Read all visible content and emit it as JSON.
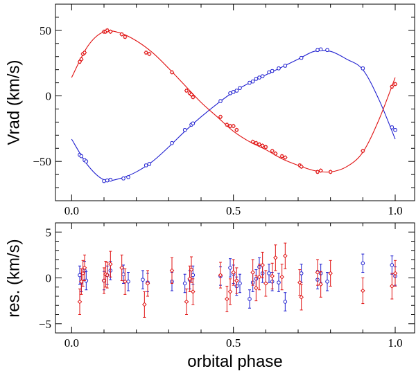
{
  "chart_data": [
    {
      "type": "line",
      "panel": "top",
      "title": "",
      "xlabel": "",
      "ylabel": "Vrad (km/s)",
      "xlim": [
        -0.05,
        1.06
      ],
      "ylim": [
        -80,
        70
      ],
      "xticks": [
        0.0,
        0.5,
        1.0
      ],
      "xtick_labels": [
        "0.0",
        "0.5",
        "1.0"
      ],
      "yticks": [
        -50,
        0,
        50
      ],
      "ytick_labels": [
        "−50",
        "0",
        "50"
      ],
      "series": [
        {
          "name": "primary (blue circles)",
          "color": "#1f1fd0",
          "marker": "circle",
          "points": [
            [
              0.025,
              -45
            ],
            [
              0.03,
              -46
            ],
            [
              0.04,
              -49
            ],
            [
              0.045,
              -50
            ],
            [
              0.1,
              -65
            ],
            [
              0.11,
              -64.5
            ],
            [
              0.12,
              -64
            ],
            [
              0.16,
              -63
            ],
            [
              0.175,
              -62
            ],
            [
              0.23,
              -53
            ],
            [
              0.24,
              -52
            ],
            [
              0.31,
              -36
            ],
            [
              0.35,
              -26
            ],
            [
              0.37,
              -22
            ],
            [
              0.375,
              -21
            ],
            [
              0.46,
              -4
            ],
            [
              0.49,
              2
            ],
            [
              0.5,
              3
            ],
            [
              0.51,
              4
            ],
            [
              0.52,
              6
            ],
            [
              0.55,
              10
            ],
            [
              0.56,
              11
            ],
            [
              0.57,
              13
            ],
            [
              0.58,
              14
            ],
            [
              0.59,
              15
            ],
            [
              0.61,
              18
            ],
            [
              0.62,
              19
            ],
            [
              0.64,
              21
            ],
            [
              0.66,
              23
            ],
            [
              0.71,
              29
            ],
            [
              0.76,
              35
            ],
            [
              0.77,
              35.5
            ],
            [
              0.79,
              35
            ],
            [
              0.9,
              21
            ],
            [
              0.99,
              -24
            ],
            [
              1.0,
              -26
            ]
          ],
          "curve_x": [
            0.0,
            0.05,
            0.1,
            0.15,
            0.2,
            0.25,
            0.3,
            0.35,
            0.4,
            0.45,
            0.5,
            0.55,
            0.6,
            0.65,
            0.7,
            0.75,
            0.8,
            0.85,
            0.9,
            0.95,
            1.0
          ],
          "curve_y": [
            -33,
            -53,
            -64,
            -63,
            -58,
            -50,
            -39,
            -27,
            -16,
            -6,
            3,
            10,
            16,
            22,
            28,
            34,
            34,
            28,
            20,
            -3,
            -33
          ]
        },
        {
          "name": "secondary (red diamonds)",
          "color": "#e01010",
          "marker": "diamond",
          "points": [
            [
              0.025,
              26
            ],
            [
              0.03,
              28
            ],
            [
              0.035,
              32
            ],
            [
              0.04,
              33
            ],
            [
              0.1,
              49
            ],
            [
              0.105,
              49
            ],
            [
              0.11,
              50
            ],
            [
              0.12,
              49
            ],
            [
              0.155,
              47
            ],
            [
              0.165,
              45
            ],
            [
              0.23,
              33
            ],
            [
              0.24,
              32
            ],
            [
              0.31,
              18
            ],
            [
              0.355,
              4
            ],
            [
              0.365,
              2
            ],
            [
              0.37,
              1
            ],
            [
              0.375,
              -1
            ],
            [
              0.46,
              -16
            ],
            [
              0.48,
              -22
            ],
            [
              0.49,
              -23
            ],
            [
              0.5,
              -23
            ],
            [
              0.51,
              -26
            ],
            [
              0.56,
              -35
            ],
            [
              0.57,
              -36
            ],
            [
              0.58,
              -37
            ],
            [
              0.59,
              -38
            ],
            [
              0.6,
              -39
            ],
            [
              0.62,
              -42
            ],
            [
              0.63,
              -44
            ],
            [
              0.65,
              -46
            ],
            [
              0.66,
              -47
            ],
            [
              0.705,
              -53
            ],
            [
              0.71,
              -54
            ],
            [
              0.76,
              -58
            ],
            [
              0.77,
              -57
            ],
            [
              0.8,
              -58
            ],
            [
              0.9,
              -42
            ],
            [
              0.99,
              7
            ],
            [
              1.0,
              9
            ]
          ],
          "curve_x": [
            0.0,
            0.05,
            0.1,
            0.15,
            0.2,
            0.25,
            0.3,
            0.35,
            0.4,
            0.45,
            0.5,
            0.55,
            0.6,
            0.65,
            0.7,
            0.75,
            0.8,
            0.85,
            0.9,
            0.95,
            1.0
          ],
          "curve_y": [
            14,
            38,
            49,
            48,
            42,
            33,
            21,
            8,
            -5,
            -16,
            -27,
            -35,
            -41,
            -48,
            -53,
            -57,
            -58,
            -54,
            -43,
            -18,
            14
          ]
        }
      ]
    },
    {
      "type": "scatter",
      "panel": "bottom",
      "title": "",
      "xlabel": "orbital phase",
      "ylabel": "res. (km/s)",
      "xlim": [
        -0.05,
        1.06
      ],
      "ylim": [
        -6,
        6
      ],
      "xticks": [
        0.0,
        0.5,
        1.0
      ],
      "xtick_labels": [
        "0.0",
        "0.5",
        "1.0"
      ],
      "yticks": [
        -5,
        0,
        5
      ],
      "ytick_labels": [
        "−5",
        "0",
        "5"
      ],
      "series": [
        {
          "name": "primary residuals (blue circles)",
          "color": "#1f1fd0",
          "marker": "circle",
          "error": 1.0,
          "points": [
            [
              0.025,
              0.3
            ],
            [
              0.03,
              -0.5
            ],
            [
              0.04,
              0.8
            ],
            [
              0.045,
              -0.3
            ],
            [
              0.1,
              -0.3
            ],
            [
              0.11,
              0.3
            ],
            [
              0.12,
              0.8
            ],
            [
              0.16,
              0.4
            ],
            [
              0.175,
              -0.4
            ],
            [
              0.22,
              -0.2
            ],
            [
              0.235,
              -0.5
            ],
            [
              0.31,
              -0.4
            ],
            [
              0.35,
              -0.6
            ],
            [
              0.365,
              -0.2
            ],
            [
              0.375,
              0.3
            ],
            [
              0.46,
              0.2
            ],
            [
              0.49,
              1.1
            ],
            [
              0.5,
              0.4
            ],
            [
              0.51,
              -0.9
            ],
            [
              0.52,
              -0.6
            ],
            [
              0.55,
              -2.3
            ],
            [
              0.56,
              -0.5
            ],
            [
              0.57,
              -0.1
            ],
            [
              0.58,
              1.2
            ],
            [
              0.59,
              0.5
            ],
            [
              0.61,
              0.5
            ],
            [
              0.62,
              -0.4
            ],
            [
              0.64,
              -0.5
            ],
            [
              0.66,
              -2.6
            ],
            [
              0.71,
              0.5
            ],
            [
              0.76,
              -0.2
            ],
            [
              0.77,
              0.5
            ],
            [
              0.79,
              -0.4
            ],
            [
              0.9,
              1.6
            ],
            [
              0.99,
              1.4
            ],
            [
              1.0,
              0.2
            ]
          ]
        },
        {
          "name": "secondary residuals (red diamonds)",
          "color": "#e01010",
          "marker": "diamond",
          "error": 1.4,
          "points": [
            [
              0.025,
              -2.6
            ],
            [
              0.03,
              -0.4
            ],
            [
              0.035,
              0.5
            ],
            [
              0.04,
              1.1
            ],
            [
              0.1,
              -0.3
            ],
            [
              0.105,
              0.4
            ],
            [
              0.11,
              0.3
            ],
            [
              0.12,
              1.5
            ],
            [
              0.155,
              1.1
            ],
            [
              0.165,
              -0.4
            ],
            [
              0.225,
              -2.9
            ],
            [
              0.235,
              -0.6
            ],
            [
              0.31,
              0.8
            ],
            [
              0.355,
              -2.6
            ],
            [
              0.365,
              -0.1
            ],
            [
              0.37,
              0.9
            ],
            [
              0.375,
              -1.5
            ],
            [
              0.46,
              0.3
            ],
            [
              0.48,
              -2.3
            ],
            [
              0.49,
              -1.5
            ],
            [
              0.5,
              0.6
            ],
            [
              0.51,
              -0.3
            ],
            [
              0.56,
              0.6
            ],
            [
              0.57,
              -1.1
            ],
            [
              0.58,
              0.1
            ],
            [
              0.59,
              1.4
            ],
            [
              0.6,
              -0.6
            ],
            [
              0.62,
              0.2
            ],
            [
              0.63,
              2.2
            ],
            [
              0.65,
              0.1
            ],
            [
              0.66,
              2.4
            ],
            [
              0.705,
              -0.5
            ],
            [
              0.71,
              -2.1
            ],
            [
              0.76,
              0.6
            ],
            [
              0.77,
              -0.7
            ],
            [
              0.8,
              0.5
            ],
            [
              0.9,
              -1.4
            ],
            [
              0.99,
              -0.9
            ],
            [
              1.0,
              0.5
            ]
          ]
        }
      ]
    }
  ]
}
